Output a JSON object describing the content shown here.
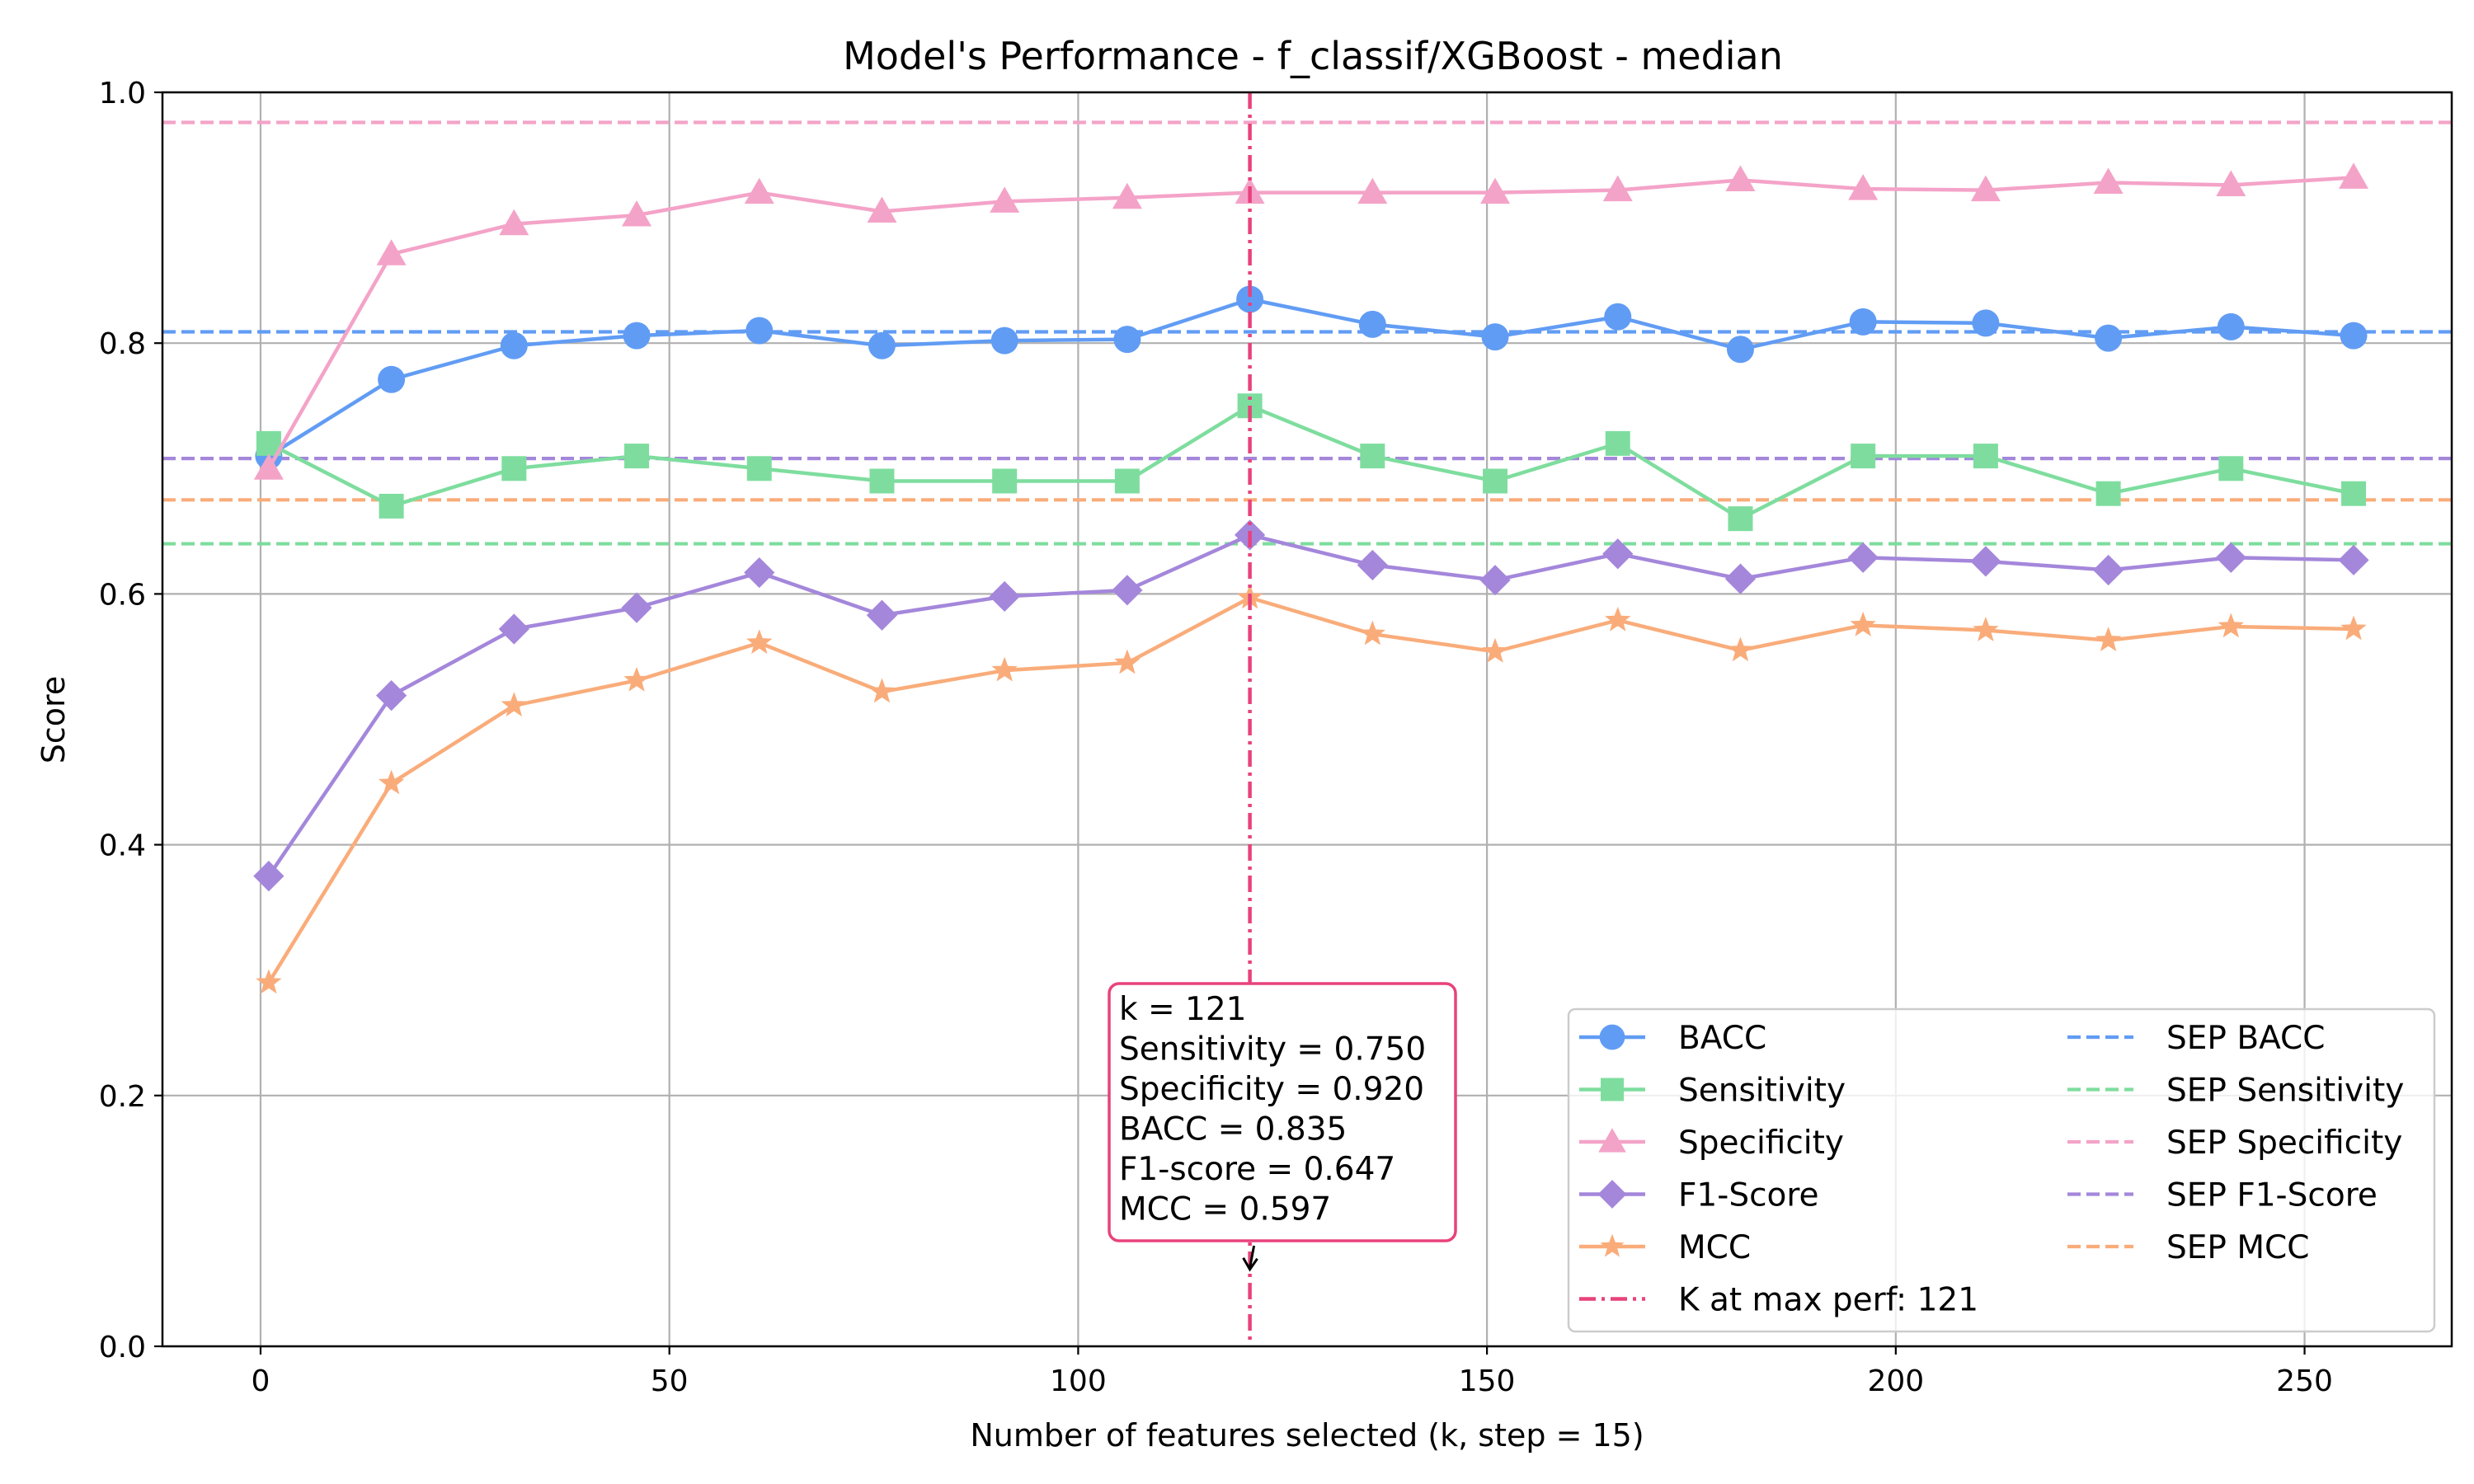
{
  "chart_data": {
    "type": "line",
    "title": "Model's Performance - f_classif/XGBoost - median",
    "xlabel": "Number of features selected (k, step = 15)",
    "ylabel": "Score",
    "xlim": [
      -12,
      268
    ],
    "ylim": [
      0.0,
      1.0
    ],
    "x_ticks": [
      "0",
      "50",
      "100",
      "150",
      "200",
      "250"
    ],
    "y_ticks": [
      "0.0",
      "0.2",
      "0.4",
      "0.6",
      "0.8",
      "1.0"
    ],
    "grid": true,
    "legend_position": "lower-right",
    "x": [
      1,
      16,
      31,
      46,
      61,
      76,
      91,
      106,
      121,
      136,
      151,
      166,
      181,
      196,
      211,
      226,
      241,
      256
    ],
    "series": [
      {
        "name": "BACC",
        "color": "#619cf4",
        "marker": "circle",
        "values": [
          0.71,
          0.771,
          0.798,
          0.806,
          0.81,
          0.798,
          0.802,
          0.803,
          0.835,
          0.815,
          0.805,
          0.821,
          0.795,
          0.817,
          0.816,
          0.804,
          0.813,
          0.806
        ]
      },
      {
        "name": "Sensitivity",
        "color": "#7edd9e",
        "marker": "square",
        "values": [
          0.72,
          0.67,
          0.7,
          0.71,
          0.7,
          0.69,
          0.69,
          0.69,
          0.75,
          0.71,
          0.69,
          0.72,
          0.66,
          0.71,
          0.71,
          0.68,
          0.7,
          0.68
        ]
      },
      {
        "name": "Specificity",
        "color": "#f4a3c8",
        "marker": "triangle",
        "values": [
          0.7,
          0.871,
          0.895,
          0.902,
          0.92,
          0.905,
          0.913,
          0.916,
          0.92,
          0.92,
          0.92,
          0.922,
          0.93,
          0.923,
          0.922,
          0.928,
          0.926,
          0.932
        ]
      },
      {
        "name": "F1-Score",
        "color": "#a487db",
        "marker": "diamond",
        "values": [
          0.375,
          0.519,
          0.572,
          0.589,
          0.617,
          0.583,
          0.598,
          0.603,
          0.647,
          0.623,
          0.611,
          0.632,
          0.612,
          0.629,
          0.626,
          0.619,
          0.629,
          0.627
        ]
      },
      {
        "name": "MCC",
        "color": "#f9ac7a",
        "marker": "star",
        "values": [
          0.29,
          0.449,
          0.511,
          0.531,
          0.561,
          0.522,
          0.539,
          0.545,
          0.597,
          0.568,
          0.554,
          0.579,
          0.555,
          0.575,
          0.571,
          0.563,
          0.574,
          0.572
        ]
      }
    ],
    "reference_lines": [
      {
        "name": "SEP BACC",
        "color": "#619cf4",
        "value": 0.809
      },
      {
        "name": "SEP Sensitivity",
        "color": "#7edd9e",
        "value": 0.64
      },
      {
        "name": "SEP Specificity",
        "color": "#f4a3c8",
        "value": 0.976
      },
      {
        "name": "SEP F1-Score",
        "color": "#a487db",
        "value": 0.708
      },
      {
        "name": "SEP MCC",
        "color": "#f9ac7a",
        "value": 0.675
      }
    ],
    "vertical_line": {
      "name": "K at max perf: 121",
      "x": 121,
      "color": "#e8427c"
    },
    "annotation": {
      "lines": [
        "k = 121",
        "Sensitivity = 0.750",
        "Specificity = 0.920",
        "BACC = 0.835",
        "F1-score = 0.647",
        "MCC = 0.597"
      ],
      "point_to": {
        "x": 121,
        "y": 0.06
      },
      "border_color": "#e8427c"
    }
  }
}
